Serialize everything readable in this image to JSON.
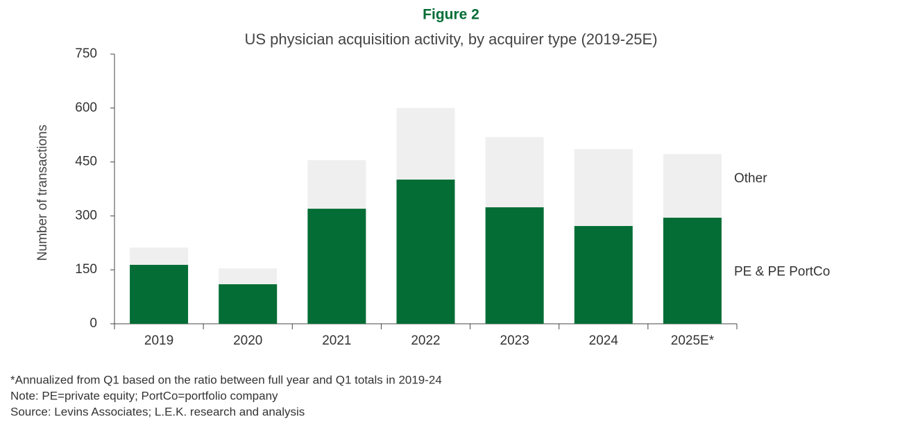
{
  "chart_data": {
    "type": "stacked_bar",
    "label": "Figure 2",
    "title": "US physician acquisition activity, by acquirer type (2019-25E)",
    "y_label": "Number of transactions",
    "categories": [
      "2019",
      "2020",
      "2021",
      "2022",
      "2023",
      "2024",
      "2025E*"
    ],
    "series": [
      {
        "name": "PE & PE PortCo",
        "color": "#036d35",
        "values": [
          164,
          110,
          320,
          401,
          324,
          272,
          295
        ]
      },
      {
        "name": "Other",
        "color": "#efefef",
        "values": [
          48,
          44,
          135,
          199,
          195,
          214,
          177
        ]
      }
    ],
    "ylim": [
      0,
      750
    ],
    "yticks": [
      0,
      150,
      300,
      450,
      600,
      750
    ],
    "footnotes": [
      "*Annualized from Q1 based on the ratio between full year and Q1 totals in 2019-24",
      "Note: PE=private equity; PortCo=portfolio company",
      "Source: Levins Associates; L.E.K. research and analysis"
    ]
  }
}
